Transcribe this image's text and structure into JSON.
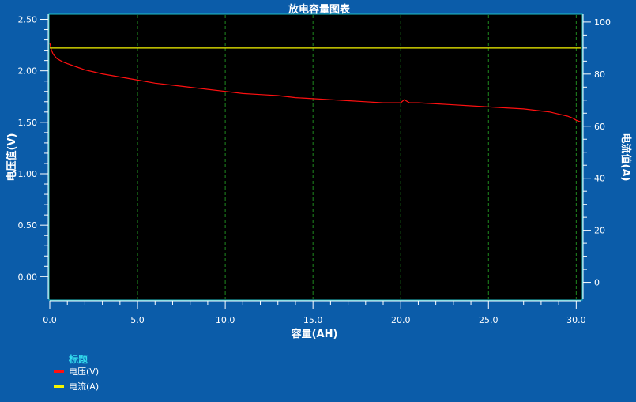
{
  "chart_data": {
    "type": "line",
    "title": "放电容量图表",
    "xlabel": "容量(AH)",
    "ylabel": "电压值(V)",
    "y2label": "电流值(A)",
    "xlim": [
      0,
      30.3
    ],
    "ylim": [
      -0.22,
      2.55
    ],
    "y2lim": [
      -6.5,
      103
    ],
    "x_ticks": [
      "0.0",
      "5.0",
      "10.0",
      "15.0",
      "20.0",
      "25.0",
      "30.0"
    ],
    "y_ticks": [
      "0.00",
      "0.50",
      "1.00",
      "1.50",
      "2.00",
      "2.50"
    ],
    "y2_ticks": [
      "0",
      "20",
      "40",
      "60",
      "80",
      "100"
    ],
    "grid": "vertical dashed green at x ticks",
    "legend": {
      "title": "标题",
      "placement": "bottom-left"
    },
    "series": [
      {
        "name": "电压(V)",
        "axis": "left",
        "color": "#ff1010",
        "x": [
          0.0,
          0.1,
          0.2,
          0.4,
          0.7,
          1.0,
          1.5,
          2.0,
          2.5,
          3.0,
          4.0,
          5.0,
          6.0,
          7.0,
          8.0,
          9.0,
          10.0,
          11.0,
          12.0,
          13.0,
          14.0,
          15.0,
          16.0,
          17.0,
          18.0,
          19.0,
          20.0,
          20.2,
          20.5,
          21.0,
          22.0,
          23.0,
          24.0,
          25.0,
          26.0,
          27.0,
          28.0,
          28.5,
          29.0,
          29.5,
          29.8,
          30.0,
          30.3
        ],
        "y": [
          2.27,
          2.2,
          2.16,
          2.12,
          2.09,
          2.07,
          2.04,
          2.01,
          1.99,
          1.97,
          1.94,
          1.91,
          1.88,
          1.86,
          1.84,
          1.82,
          1.8,
          1.78,
          1.77,
          1.76,
          1.74,
          1.73,
          1.72,
          1.71,
          1.7,
          1.69,
          1.69,
          1.72,
          1.69,
          1.69,
          1.68,
          1.67,
          1.66,
          1.65,
          1.64,
          1.63,
          1.61,
          1.6,
          1.58,
          1.56,
          1.54,
          1.52,
          1.5
        ]
      },
      {
        "name": "电流(A)",
        "axis": "right",
        "color": "#f5f500",
        "x": [
          0.0,
          30.3
        ],
        "y": [
          90,
          90
        ]
      }
    ]
  }
}
